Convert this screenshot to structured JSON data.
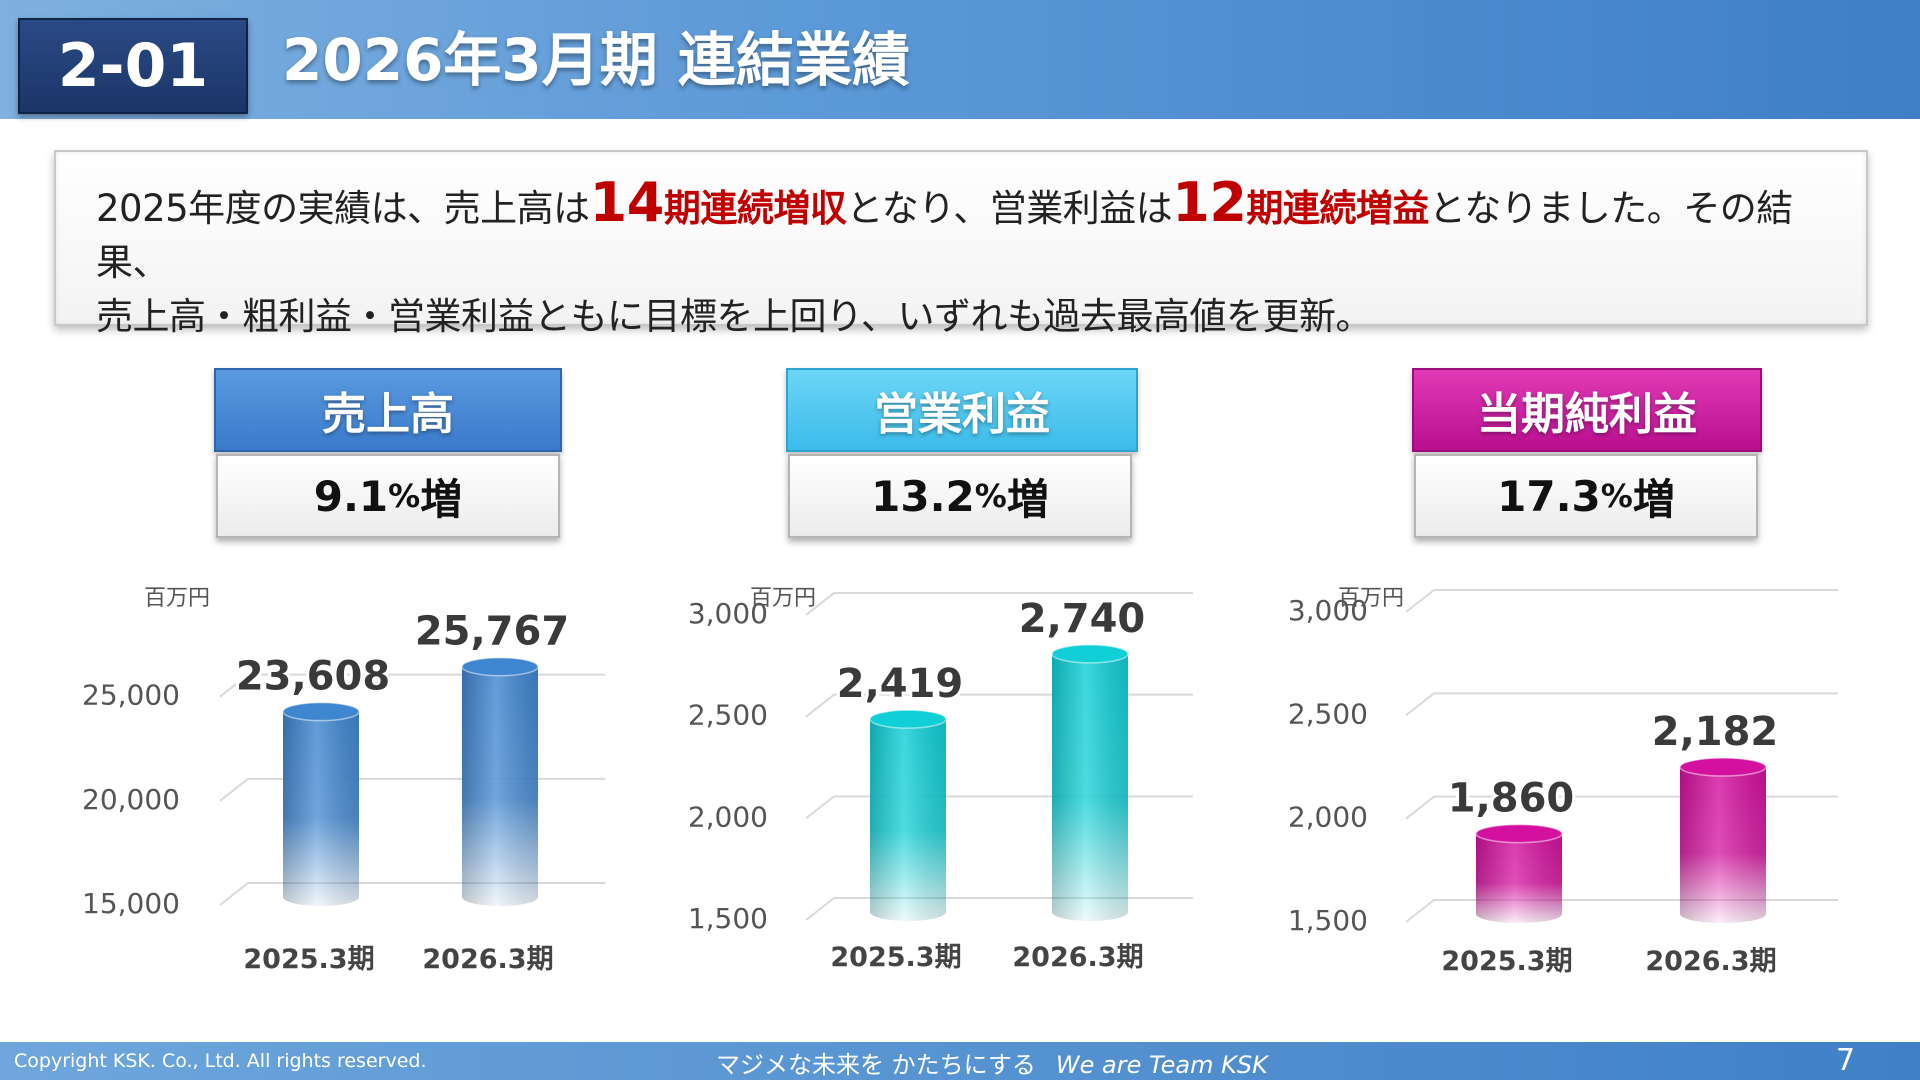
{
  "header": {
    "section_no": "2-01",
    "title": "2026年3月期 連結業績"
  },
  "summary": {
    "line1_a": "2025年度の実績は、売上高は",
    "line1_num1": "14",
    "line1_em1": "期連続増収",
    "line1_b": "となり、営業利益は",
    "line1_num2": "12",
    "line1_em2": "期連続増益",
    "line1_c": "となりました。その結果、",
    "line2": "売上高・粗利益・営業利益ともに目標を上回り、いずれも過去最高値を更新。"
  },
  "kpis": [
    {
      "title": "売上高",
      "growth_value": "9.1",
      "growth_unit": "%",
      "growth_suffix": "増"
    },
    {
      "title": "営業利益",
      "growth_value": "13.2",
      "growth_unit": "%",
      "growth_suffix": "増"
    },
    {
      "title": "当期純利益",
      "growth_value": "17.3",
      "growth_unit": "%",
      "growth_suffix": "増"
    }
  ],
  "chart_data": [
    {
      "type": "bar",
      "unit_label": "百万円",
      "categories": [
        "2025.3期",
        "2026.3期"
      ],
      "values": [
        23608,
        25767
      ],
      "value_labels": [
        "23,608",
        "25,767"
      ],
      "ylim": [
        15000,
        27000
      ],
      "yticks": [
        15000,
        20000,
        25000
      ],
      "ytick_labels": [
        "15,000",
        "20,000",
        "25,000"
      ],
      "color": "#3f86d0"
    },
    {
      "type": "bar",
      "unit_label": "百万円",
      "categories": [
        "2025.3期",
        "2026.3期"
      ],
      "values": [
        2419,
        2740
      ],
      "value_labels": [
        "2,419",
        "2,740"
      ],
      "ylim": [
        1500,
        3000
      ],
      "yticks": [
        1500,
        2000,
        2500,
        3000
      ],
      "ytick_labels": [
        "1,500",
        "2,000",
        "2,500",
        "3,000"
      ],
      "color": "#10cfd6"
    },
    {
      "type": "bar",
      "unit_label": "百万円",
      "categories": [
        "2025.3期",
        "2026.3期"
      ],
      "values": [
        1860,
        2182
      ],
      "value_labels": [
        "1,860",
        "2,182"
      ],
      "ylim": [
        1500,
        3000
      ],
      "yticks": [
        1500,
        2000,
        2500,
        3000
      ],
      "ytick_labels": [
        "1,500",
        "2,000",
        "2,500",
        "3,000"
      ],
      "color": "#d4109e"
    }
  ],
  "footer": {
    "copyright": "Copyright KSK. Co., Ltd. All rights reserved.",
    "slogan_jp": "マジメな未来を かたちにする",
    "slogan_en": "We are Team KSK",
    "page_number": "7"
  }
}
